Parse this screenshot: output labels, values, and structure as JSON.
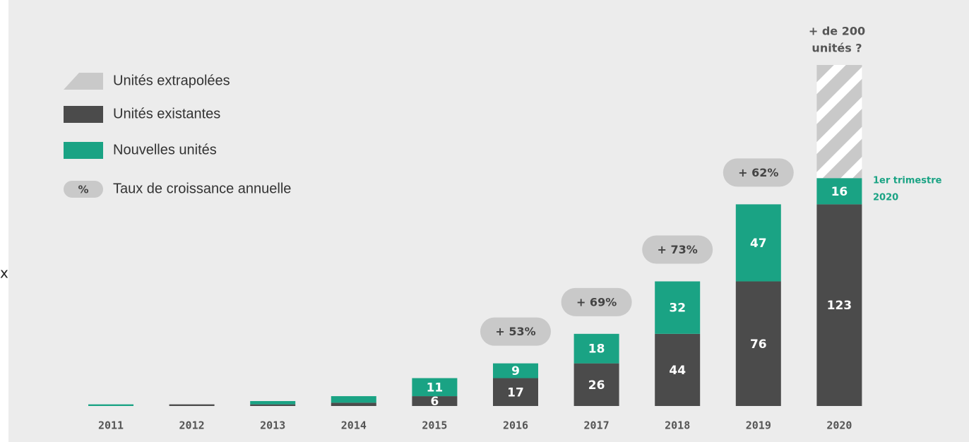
{
  "chart_data": {
    "type": "stacked_bar",
    "categories": [
      "2011",
      "2012",
      "2013",
      "2014",
      "2015",
      "2016",
      "2017",
      "2018",
      "2019",
      "2020"
    ],
    "series": [
      {
        "name": "Unités extrapolées",
        "color": "#c9c9c9",
        "pattern": "hatch",
        "values": [
          null,
          null,
          null,
          null,
          null,
          null,
          null,
          null,
          null,
          69
        ]
      },
      {
        "name": "Unités existantes",
        "color": "#4b4b4b",
        "values": [
          0,
          1,
          1,
          2,
          6,
          17,
          26,
          44,
          76,
          123
        ]
      },
      {
        "name": "Nouvelles unités",
        "color": "#1aa384",
        "values": [
          1,
          0,
          2,
          4,
          11,
          9,
          18,
          32,
          47,
          16
        ]
      }
    ],
    "growth_rates": {
      "name": "Taux de croissance annuelle",
      "symbol": "%",
      "color": "#c9c9c9",
      "values": [
        null,
        null,
        null,
        null,
        null,
        53,
        69,
        73,
        62,
        null
      ],
      "value_labels": [
        null,
        null,
        null,
        null,
        null,
        "+ 53%",
        "+ 69%",
        "+ 73%",
        "+ 62%",
        null
      ]
    },
    "annotations": [
      {
        "lines": [
          "+ de 200",
          "unités ?"
        ],
        "color": "#555555"
      },
      {
        "lines": [
          "1er trimestre",
          "2020"
        ],
        "color": "#1aa384"
      }
    ],
    "edge_text": "x"
  }
}
